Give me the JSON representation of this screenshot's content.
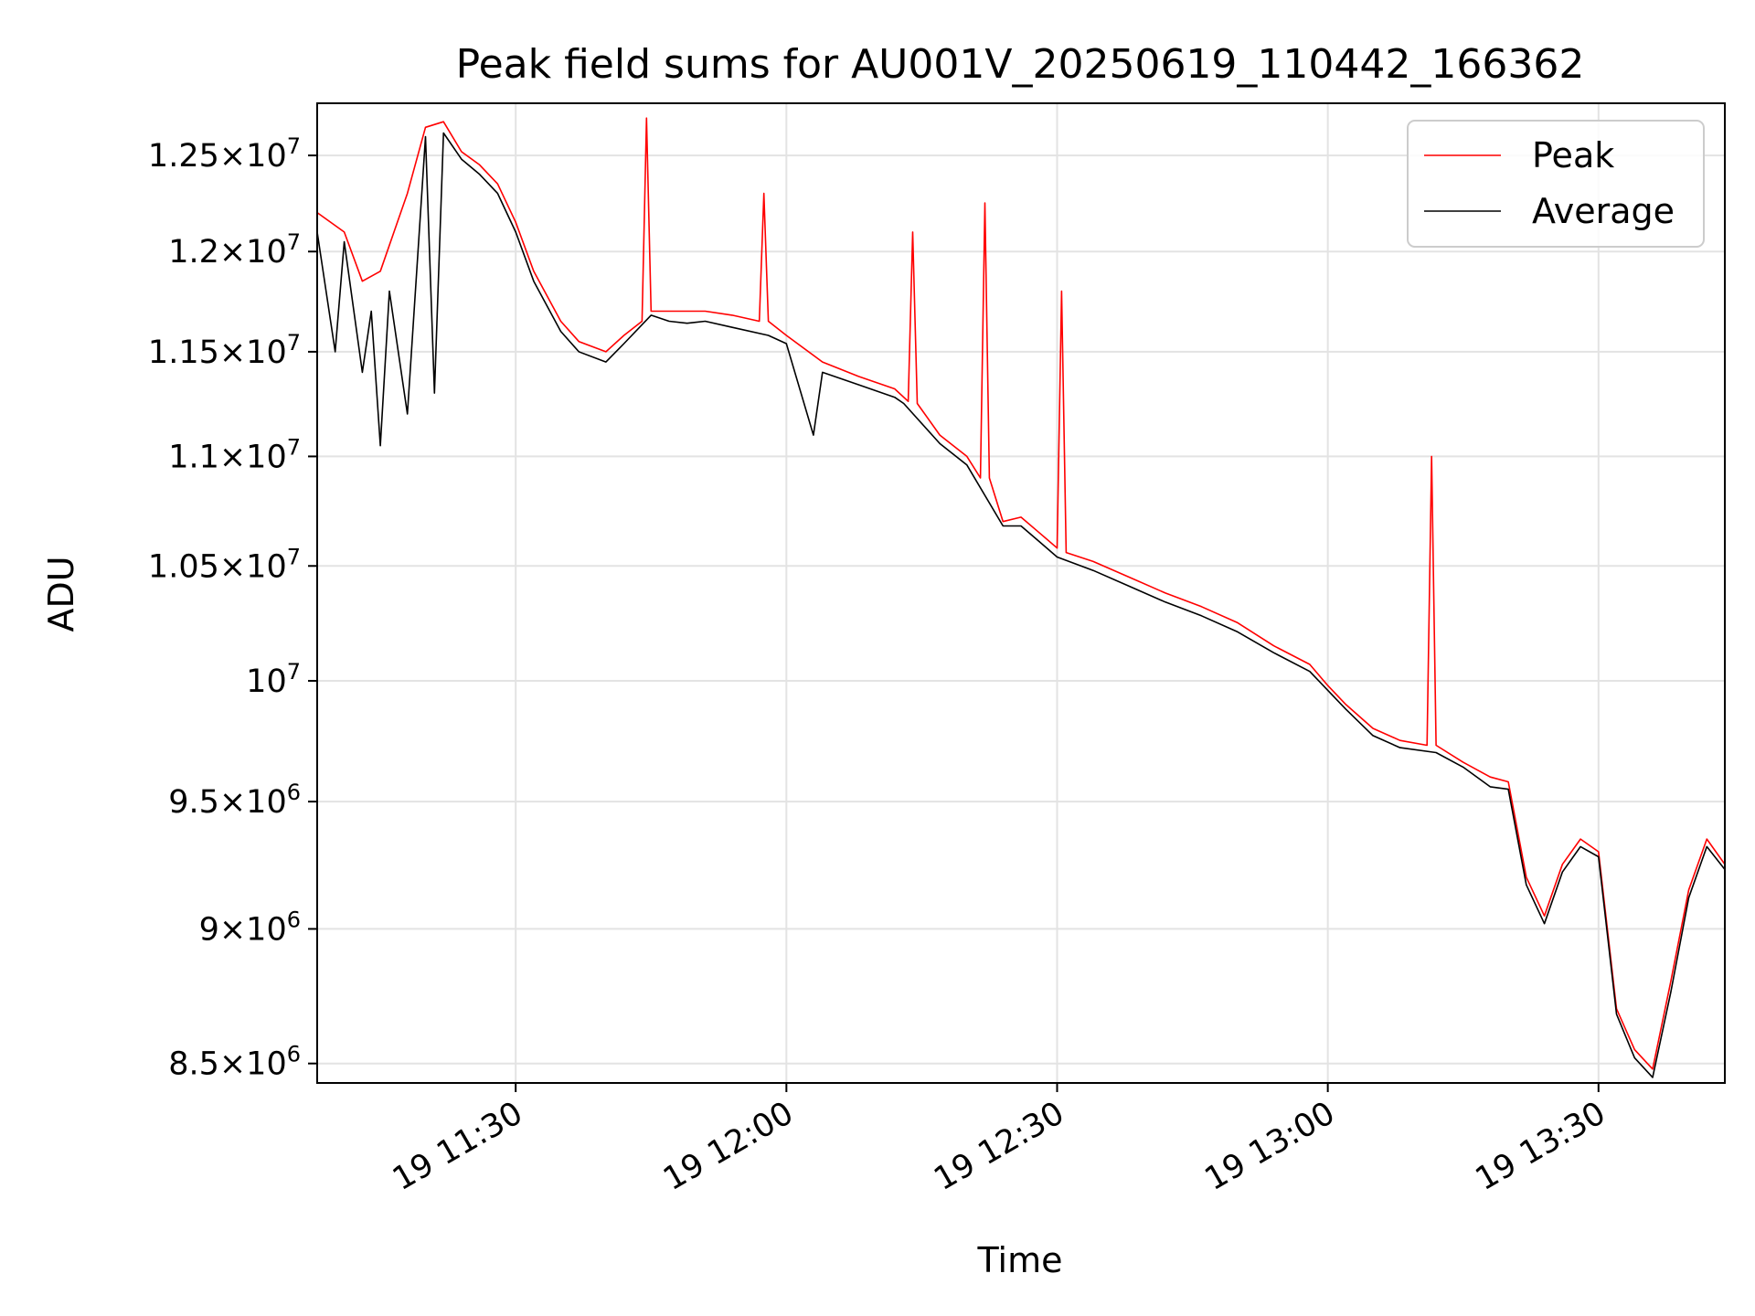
{
  "chart_data": {
    "type": "line",
    "title": "Peak field sums for AU001V_20250619_110442_166362",
    "xlabel": "Time",
    "ylabel": "ADU",
    "grid": true,
    "legend_position": "top-right",
    "y_scale": "log",
    "xlim": [
      "2025-06-19T11:08:00",
      "2025-06-19T13:44:00"
    ],
    "ylim": [
      8430000,
      12780000
    ],
    "x_ticks": [
      {
        "value": "2025-06-19T11:30:00",
        "label": "19 11:30"
      },
      {
        "value": "2025-06-19T12:00:00",
        "label": "19 12:00"
      },
      {
        "value": "2025-06-19T12:30:00",
        "label": "19 12:30"
      },
      {
        "value": "2025-06-19T13:00:00",
        "label": "19 13:00"
      },
      {
        "value": "2025-06-19T13:30:00",
        "label": "19 13:30"
      }
    ],
    "y_ticks": [
      {
        "value": 8500000,
        "mantissa": "8.5",
        "exp": "6"
      },
      {
        "value": 9000000,
        "mantissa": "9",
        "exp": "6"
      },
      {
        "value": 9500000,
        "mantissa": "9.5",
        "exp": "6"
      },
      {
        "value": 10000000,
        "mantissa": "",
        "exp": "7"
      },
      {
        "value": 10500000,
        "mantissa": "1.05",
        "exp": "7"
      },
      {
        "value": 11000000,
        "mantissa": "1.1",
        "exp": "7"
      },
      {
        "value": 11500000,
        "mantissa": "1.15",
        "exp": "7"
      },
      {
        "value": 12000000,
        "mantissa": "1.2",
        "exp": "7"
      },
      {
        "value": 12500000,
        "mantissa": "1.25",
        "exp": "7"
      }
    ],
    "series": [
      {
        "name": "Peak",
        "color": "#ff0000",
        "x": [
          "2025-06-19T11:08:00",
          "2025-06-19T11:11:00",
          "2025-06-19T11:13:00",
          "2025-06-19T11:15:00",
          "2025-06-19T11:18:00",
          "2025-06-19T11:20:00",
          "2025-06-19T11:22:00",
          "2025-06-19T11:24:00",
          "2025-06-19T11:26:00",
          "2025-06-19T11:28:00",
          "2025-06-19T11:30:00",
          "2025-06-19T11:32:00",
          "2025-06-19T11:35:00",
          "2025-06-19T11:37:00",
          "2025-06-19T11:40:00",
          "2025-06-19T11:42:00",
          "2025-06-19T11:44:00",
          "2025-06-19T11:44:30",
          "2025-06-19T11:45:00",
          "2025-06-19T11:47:00",
          "2025-06-19T11:49:00",
          "2025-06-19T11:51:00",
          "2025-06-19T11:54:00",
          "2025-06-19T11:57:00",
          "2025-06-19T11:57:30",
          "2025-06-19T11:58:00",
          "2025-06-19T12:00:00",
          "2025-06-19T12:04:00",
          "2025-06-19T12:08:00",
          "2025-06-19T12:12:00",
          "2025-06-19T12:13:30",
          "2025-06-19T12:14:00",
          "2025-06-19T12:14:30",
          "2025-06-19T12:17:00",
          "2025-06-19T12:20:00",
          "2025-06-19T12:21:30",
          "2025-06-19T12:22:00",
          "2025-06-19T12:22:30",
          "2025-06-19T12:24:00",
          "2025-06-19T12:26:00",
          "2025-06-19T12:28:00",
          "2025-06-19T12:30:00",
          "2025-06-19T12:30:30",
          "2025-06-19T12:31:00",
          "2025-06-19T12:34:00",
          "2025-06-19T12:38:00",
          "2025-06-19T12:42:00",
          "2025-06-19T12:46:00",
          "2025-06-19T12:50:00",
          "2025-06-19T12:54:00",
          "2025-06-19T12:58:00",
          "2025-06-19T13:00:00",
          "2025-06-19T13:02:00",
          "2025-06-19T13:05:00",
          "2025-06-19T13:08:00",
          "2025-06-19T13:11:00",
          "2025-06-19T13:11:30",
          "2025-06-19T13:12:00",
          "2025-06-19T13:15:00",
          "2025-06-19T13:18:00",
          "2025-06-19T13:20:00",
          "2025-06-19T13:22:00",
          "2025-06-19T13:24:00",
          "2025-06-19T13:26:00",
          "2025-06-19T13:28:00",
          "2025-06-19T13:30:00",
          "2025-06-19T13:32:00",
          "2025-06-19T13:34:00",
          "2025-06-19T13:36:00",
          "2025-06-19T13:38:00",
          "2025-06-19T13:40:00",
          "2025-06-19T13:42:00",
          "2025-06-19T13:44:00"
        ],
        "values": [
          12200000,
          12100000,
          11850000,
          11900000,
          12300000,
          12650000,
          12680000,
          12520000,
          12450000,
          12350000,
          12150000,
          11900000,
          11650000,
          11550000,
          11500000,
          11580000,
          11650000,
          12700000,
          11700000,
          11700000,
          11700000,
          11700000,
          11680000,
          11650000,
          12300000,
          11650000,
          11580000,
          11450000,
          11380000,
          11320000,
          11260000,
          12100000,
          11250000,
          11100000,
          11000000,
          10900000,
          12250000,
          10900000,
          10700000,
          10720000,
          10650000,
          10580000,
          11800000,
          10560000,
          10520000,
          10450000,
          10380000,
          10320000,
          10250000,
          10150000,
          10070000,
          9980000,
          9900000,
          9800000,
          9750000,
          9730000,
          11000000,
          9730000,
          9660000,
          9600000,
          9580000,
          9200000,
          9050000,
          9250000,
          9350000,
          9300000,
          8700000,
          8550000,
          8480000,
          8800000,
          9150000,
          9350000,
          9250000
        ]
      },
      {
        "name": "Average",
        "color": "#000000",
        "x": [
          "2025-06-19T11:08:00",
          "2025-06-19T11:10:00",
          "2025-06-19T11:11:00",
          "2025-06-19T11:13:00",
          "2025-06-19T11:14:00",
          "2025-06-19T11:15:00",
          "2025-06-19T11:16:00",
          "2025-06-19T11:18:00",
          "2025-06-19T11:20:00",
          "2025-06-19T11:21:00",
          "2025-06-19T11:22:00",
          "2025-06-19T11:24:00",
          "2025-06-19T11:26:00",
          "2025-06-19T11:28:00",
          "2025-06-19T11:30:00",
          "2025-06-19T11:32:00",
          "2025-06-19T11:35:00",
          "2025-06-19T11:37:00",
          "2025-06-19T11:40:00",
          "2025-06-19T11:42:00",
          "2025-06-19T11:45:00",
          "2025-06-19T11:47:00",
          "2025-06-19T11:49:00",
          "2025-06-19T11:51:00",
          "2025-06-19T11:54:00",
          "2025-06-19T11:58:00",
          "2025-06-19T12:00:00",
          "2025-06-19T12:03:00",
          "2025-06-19T12:04:00",
          "2025-06-19T12:08:00",
          "2025-06-19T12:12:00",
          "2025-06-19T12:13:00",
          "2025-06-19T12:17:00",
          "2025-06-19T12:20:00",
          "2025-06-19T12:24:00",
          "2025-06-19T12:26:00",
          "2025-06-19T12:28:00",
          "2025-06-19T12:30:00",
          "2025-06-19T12:34:00",
          "2025-06-19T12:38:00",
          "2025-06-19T12:42:00",
          "2025-06-19T12:46:00",
          "2025-06-19T12:50:00",
          "2025-06-19T12:54:00",
          "2025-06-19T12:58:00",
          "2025-06-19T13:02:00",
          "2025-06-19T13:05:00",
          "2025-06-19T13:08:00",
          "2025-06-19T13:12:00",
          "2025-06-19T13:15:00",
          "2025-06-19T13:18:00",
          "2025-06-19T13:20:00",
          "2025-06-19T13:22:00",
          "2025-06-19T13:24:00",
          "2025-06-19T13:26:00",
          "2025-06-19T13:28:00",
          "2025-06-19T13:30:00",
          "2025-06-19T13:32:00",
          "2025-06-19T13:34:00",
          "2025-06-19T13:36:00",
          "2025-06-19T13:38:00",
          "2025-06-19T13:40:00",
          "2025-06-19T13:42:00",
          "2025-06-19T13:44:00"
        ],
        "values": [
          12100000,
          11500000,
          12050000,
          11400000,
          11700000,
          11050000,
          11800000,
          11200000,
          12600000,
          11300000,
          12620000,
          12480000,
          12400000,
          12300000,
          12100000,
          11850000,
          11600000,
          11500000,
          11450000,
          11540000,
          11680000,
          11650000,
          11640000,
          11650000,
          11620000,
          11580000,
          11540000,
          11100000,
          11400000,
          11340000,
          11280000,
          11250000,
          11060000,
          10960000,
          10680000,
          10680000,
          10610000,
          10540000,
          10480000,
          10410000,
          10340000,
          10280000,
          10210000,
          10120000,
          10040000,
          9880000,
          9770000,
          9720000,
          9700000,
          9640000,
          9560000,
          9550000,
          9170000,
          9020000,
          9220000,
          9320000,
          9280000,
          8680000,
          8520000,
          8450000,
          8760000,
          9120000,
          9320000,
          9230000
        ]
      }
    ]
  }
}
